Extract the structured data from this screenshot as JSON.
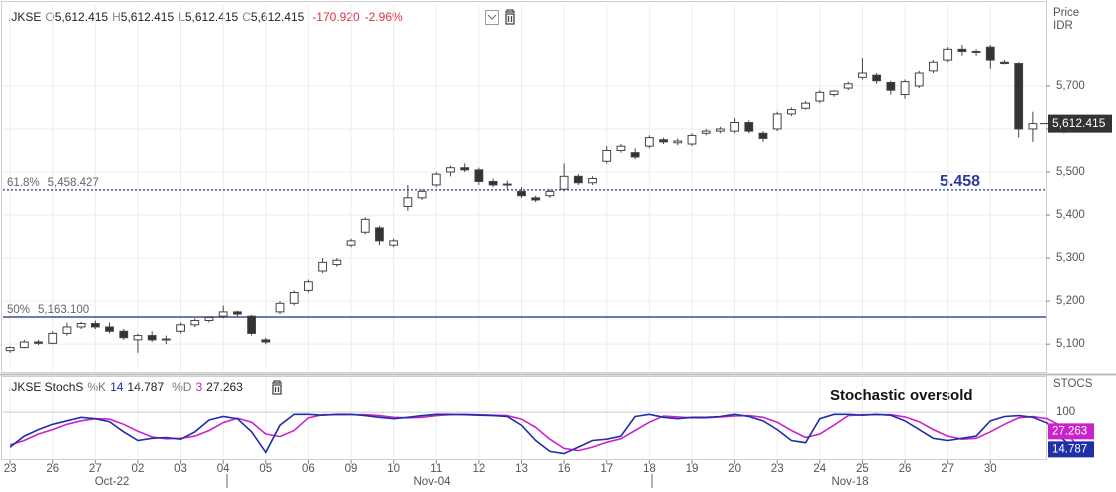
{
  "chart_data": {
    "type": "candlestick",
    "quote": {
      "symbol": ".JKSE",
      "fields": [
        {
          "label": "O",
          "value": "5,612.415"
        },
        {
          "label": "H",
          "value": "5,612.415"
        },
        {
          "label": "L",
          "value": "5,612.415"
        },
        {
          "label": "C",
          "value": "5,612.415"
        }
      ],
      "change": "-170.920",
      "change_pct": "-2.96%"
    },
    "y_label": "Price",
    "y_unit": "IDR",
    "categories": [
      "23",
      null,
      null,
      "26",
      null,
      null,
      "27",
      null,
      null,
      "02",
      null,
      null,
      "03",
      null,
      null,
      "04",
      null,
      null,
      "05",
      null,
      null,
      "06",
      null,
      null,
      "09",
      null,
      null,
      "10",
      null,
      null,
      "11",
      null,
      null,
      "12",
      null,
      null,
      "13",
      null,
      null,
      "16",
      null,
      null,
      "17",
      null,
      null,
      "18",
      null,
      null,
      "19",
      null,
      null,
      "20",
      null,
      null,
      "23",
      null,
      null,
      "24",
      null,
      null,
      "25",
      null,
      null,
      "26",
      null,
      null,
      "27",
      null,
      null,
      "30",
      null,
      null,
      null
    ],
    "period_labels": [
      "Oct-22",
      "Nov-04",
      "Nov-18"
    ],
    "open": [
      5085,
      5092,
      5105,
      5102,
      5125,
      5140,
      5148,
      5140,
      5130,
      5110,
      5120,
      5110,
      5130,
      5145,
      5155,
      5165,
      5175,
      5165,
      5110,
      5175,
      5195,
      5225,
      5270,
      5285,
      5330,
      5360,
      5370,
      5330,
      5420,
      5440,
      5470,
      5500,
      5510,
      5505,
      5478,
      5470,
      5455,
      5440,
      5445,
      5460,
      5490,
      5475,
      5525,
      5550,
      5545,
      5560,
      5575,
      5568,
      5565,
      5590,
      5595,
      5595,
      5615,
      5590,
      5600,
      5635,
      5648,
      5665,
      5680,
      5695,
      5720,
      5725,
      5708,
      5680,
      5700,
      5735,
      5760,
      5785,
      5780,
      5790,
      5755,
      5752,
      5600
    ],
    "high": [
      5095,
      5110,
      5110,
      5130,
      5150,
      5152,
      5155,
      5150,
      5135,
      5125,
      5130,
      5120,
      5150,
      5160,
      5165,
      5190,
      5178,
      5168,
      5115,
      5200,
      5225,
      5250,
      5300,
      5300,
      5345,
      5395,
      5375,
      5345,
      5470,
      5460,
      5500,
      5515,
      5520,
      5510,
      5485,
      5480,
      5465,
      5445,
      5460,
      5520,
      5495,
      5490,
      5560,
      5565,
      5555,
      5585,
      5580,
      5578,
      5590,
      5600,
      5605,
      5625,
      5620,
      5595,
      5640,
      5650,
      5665,
      5690,
      5690,
      5710,
      5765,
      5730,
      5712,
      5715,
      5735,
      5760,
      5790,
      5795,
      5785,
      5795,
      5760,
      5755,
      5640
    ],
    "low": [
      5080,
      5090,
      5098,
      5100,
      5120,
      5135,
      5135,
      5125,
      5110,
      5080,
      5105,
      5100,
      5125,
      5140,
      5150,
      5160,
      5165,
      5120,
      5100,
      5170,
      5190,
      5220,
      5265,
      5280,
      5325,
      5355,
      5330,
      5325,
      5410,
      5435,
      5465,
      5490,
      5500,
      5470,
      5465,
      5460,
      5440,
      5430,
      5440,
      5455,
      5470,
      5470,
      5520,
      5545,
      5530,
      5555,
      5565,
      5562,
      5560,
      5585,
      5590,
      5590,
      5590,
      5570,
      5595,
      5630,
      5645,
      5660,
      5675,
      5690,
      5715,
      5705,
      5680,
      5670,
      5695,
      5730,
      5755,
      5770,
      5770,
      5740,
      5750,
      5580,
      5570
    ],
    "close": [
      5092,
      5105,
      5102,
      5125,
      5140,
      5148,
      5140,
      5130,
      5115,
      5120,
      5110,
      5112,
      5145,
      5155,
      5162,
      5175,
      5170,
      5125,
      5105,
      5195,
      5220,
      5245,
      5290,
      5295,
      5340,
      5390,
      5340,
      5340,
      5440,
      5455,
      5495,
      5510,
      5505,
      5478,
      5470,
      5472,
      5445,
      5435,
      5455,
      5490,
      5475,
      5485,
      5550,
      5560,
      5535,
      5580,
      5570,
      5572,
      5585,
      5595,
      5600,
      5615,
      5595,
      5578,
      5635,
      5645,
      5660,
      5685,
      5688,
      5705,
      5730,
      5712,
      5690,
      5710,
      5730,
      5755,
      5785,
      5780,
      5778,
      5760,
      5752,
      5600,
      5612.415
    ],
    "up_color": "#ffffff",
    "down_color": "#333333",
    "edge_color": "#444444",
    "ylim": [
      5040,
      5888
    ],
    "yticks": [
      {
        "value": 5100,
        "label": "5,100"
      },
      {
        "value": 5200,
        "label": "5,200"
      },
      {
        "value": 5300,
        "label": "5,300"
      },
      {
        "value": 5400,
        "label": "5,400"
      },
      {
        "value": 5500,
        "label": "5,500"
      },
      {
        "value": 5600,
        "label": "5,600"
      },
      {
        "value": 5700,
        "label": "5,700"
      }
    ],
    "grid": true,
    "last_price": {
      "value": 5612.415,
      "label": "5,612.415"
    },
    "levels": [
      {
        "name": "61.8%",
        "value": 5458.427,
        "value_label": "5,458.427",
        "style": "dotted",
        "color": "#2b3a8c"
      },
      {
        "name": "50%",
        "value": 5163.1,
        "value_label": "5,163.100",
        "style": "solid",
        "color": "#1b2a7a"
      }
    ],
    "annotation": "5.458",
    "indicator": {
      "type": "line",
      "title": ".JKSE StochS",
      "axis_label": "STOCS",
      "annotation": "Stochastic oversold",
      "ylim": [
        -5,
        178
      ],
      "yticks": [
        100
      ],
      "series": [
        {
          "name": "%K",
          "period": 14,
          "color": "#1f2fa8",
          "values": [
            20,
            45,
            60,
            72,
            80,
            88,
            85,
            78,
            55,
            35,
            40,
            42,
            38,
            55,
            82,
            90,
            85,
            55,
            8,
            70,
            95,
            95,
            93,
            95,
            95,
            92,
            88,
            85,
            88,
            92,
            95,
            95,
            94,
            93,
            92,
            90,
            70,
            35,
            10,
            5,
            20,
            35,
            38,
            45,
            90,
            95,
            88,
            85,
            88,
            88,
            90,
            95,
            90,
            80,
            60,
            35,
            30,
            85,
            95,
            95,
            93,
            95,
            93,
            80,
            60,
            40,
            35,
            40,
            45,
            80,
            90,
            92,
            88,
            75,
            40,
            14.787
          ]
        },
        {
          "name": "%D",
          "period": 3,
          "color": "#cc22cc",
          "values": [
            25,
            35,
            50,
            60,
            72,
            80,
            85,
            84,
            72,
            56,
            43,
            39,
            40,
            45,
            58,
            76,
            86,
            77,
            50,
            44,
            58,
            87,
            94,
            94,
            94,
            94,
            92,
            88,
            87,
            88,
            92,
            94,
            95,
            94,
            93,
            92,
            84,
            65,
            38,
            17,
            12,
            20,
            31,
            39,
            58,
            77,
            91,
            89,
            87,
            87,
            89,
            91,
            92,
            88,
            77,
            58,
            42,
            50,
            70,
            92,
            94,
            94,
            94,
            89,
            78,
            60,
            45,
            38,
            40,
            55,
            72,
            87,
            90,
            85,
            68,
            27.263
          ]
        }
      ]
    }
  }
}
